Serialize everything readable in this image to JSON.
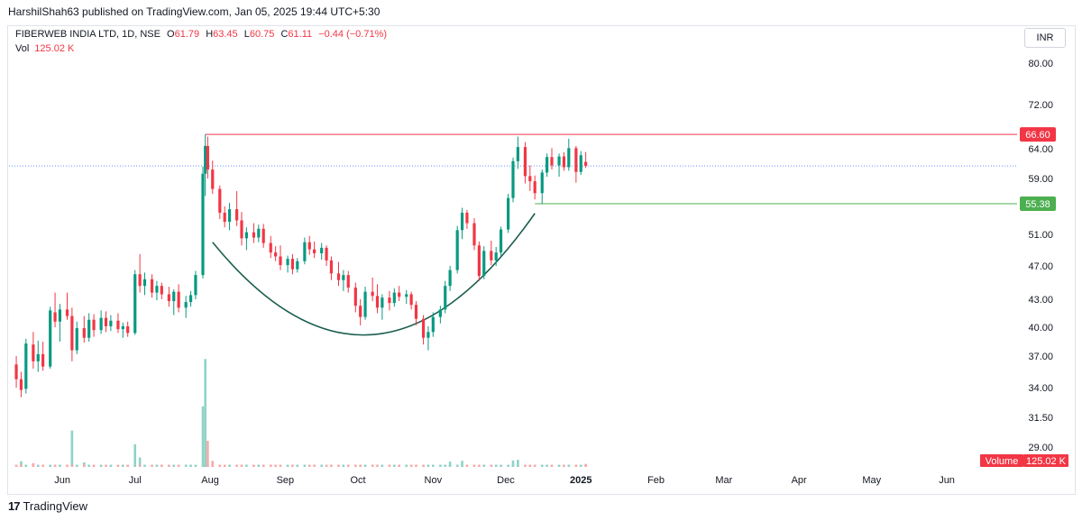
{
  "header": {
    "publish_line": "HarshilShah63 published on TradingView.com, Jan 05, 2025 19:44 UTC+5:30",
    "symbol": "FIBERWEB INDIA LTD, 1D, NSE",
    "o_label": "O",
    "o": "61.79",
    "h_label": "H",
    "h": "63.45",
    "l_label": "L",
    "l": "60.75",
    "c_label": "C",
    "c": "61.11",
    "change": "−0.44 (−0.71%)",
    "vol_label": "Vol",
    "vol_value": "125.02 K",
    "currency": "INR"
  },
  "brand": {
    "logo": "17",
    "name": "TradingView"
  },
  "colors": {
    "up": "#089981",
    "down": "#f23645",
    "vol_up": "#8fd3c7",
    "vol_down": "#f7a9a7",
    "resistance": "#f23645",
    "support": "#4caf50",
    "curve": "#1b5e4f",
    "last_price": "#2962ff"
  },
  "chart_data": {
    "type": "candlestick",
    "y_ticks": [
      "80.00",
      "72.00",
      "64.00",
      "59.00",
      "51.00",
      "47.00",
      "43.00",
      "40.00",
      "37.00",
      "34.00",
      "31.50",
      "29.00"
    ],
    "x_ticks": [
      "Jun",
      "Jul",
      "Aug",
      "Sep",
      "Oct",
      "Nov",
      "Dec",
      "2025",
      "Feb",
      "Mar",
      "Apr",
      "May",
      "Jun"
    ],
    "ylim": [
      27,
      90
    ],
    "levels": [
      {
        "value": 66.6,
        "label": "66.60",
        "color": "#f23645"
      },
      {
        "value": 55.38,
        "label": "55.38",
        "color": "#4caf50"
      }
    ],
    "last_price": 61.11,
    "volume_badge": {
      "label": "Volume",
      "value": "125.02 K"
    },
    "pattern": "cup (rounded bottom)",
    "candles": [
      {
        "date": "2024-05-13",
        "o": 36.2,
        "h": 37.0,
        "l": 34.0,
        "c": 34.8
      },
      {
        "date": "2024-05-15",
        "o": 34.8,
        "h": 35.5,
        "l": 33.2,
        "c": 33.8
      },
      {
        "date": "2024-05-17",
        "o": 33.9,
        "h": 38.8,
        "l": 33.5,
        "c": 38.3
      },
      {
        "date": "2024-05-20",
        "o": 38.2,
        "h": 39.5,
        "l": 35.8,
        "c": 36.5
      },
      {
        "date": "2024-05-22",
        "o": 36.5,
        "h": 38.6,
        "l": 35.5,
        "c": 37.2
      },
      {
        "date": "2024-05-24",
        "o": 37.2,
        "h": 38.5,
        "l": 35.6,
        "c": 36.0
      },
      {
        "date": "2024-05-27",
        "o": 36.0,
        "h": 42.2,
        "l": 35.8,
        "c": 41.8
      },
      {
        "date": "2024-05-29",
        "o": 41.6,
        "h": 43.8,
        "l": 40.0,
        "c": 40.6
      },
      {
        "date": "2024-05-31",
        "o": 40.6,
        "h": 42.5,
        "l": 38.5,
        "c": 41.9
      },
      {
        "date": "2024-06-03",
        "o": 41.9,
        "h": 43.8,
        "l": 40.8,
        "c": 41.2
      },
      {
        "date": "2024-06-05",
        "o": 41.2,
        "h": 42.1,
        "l": 36.5,
        "c": 37.6
      },
      {
        "date": "2024-06-07",
        "o": 37.6,
        "h": 40.6,
        "l": 37.2,
        "c": 39.9
      },
      {
        "date": "2024-06-10",
        "o": 39.9,
        "h": 41.2,
        "l": 38.4,
        "c": 38.9
      },
      {
        "date": "2024-06-12",
        "o": 38.9,
        "h": 41.5,
        "l": 38.5,
        "c": 40.8
      },
      {
        "date": "2024-06-14",
        "o": 40.8,
        "h": 41.4,
        "l": 39.0,
        "c": 39.7
      },
      {
        "date": "2024-06-17",
        "o": 39.7,
        "h": 41.8,
        "l": 39.3,
        "c": 41.0
      },
      {
        "date": "2024-06-19",
        "o": 41.0,
        "h": 41.7,
        "l": 39.5,
        "c": 40.1
      },
      {
        "date": "2024-06-21",
        "o": 40.1,
        "h": 41.3,
        "l": 39.6,
        "c": 40.7
      },
      {
        "date": "2024-06-24",
        "o": 40.7,
        "h": 41.5,
        "l": 39.4,
        "c": 39.8
      },
      {
        "date": "2024-06-26",
        "o": 39.8,
        "h": 40.5,
        "l": 38.9,
        "c": 40.1
      },
      {
        "date": "2024-06-28",
        "o": 40.1,
        "h": 40.6,
        "l": 39.0,
        "c": 39.4
      },
      {
        "date": "2024-07-01",
        "o": 39.4,
        "h": 46.5,
        "l": 39.2,
        "c": 46.0
      },
      {
        "date": "2024-07-03",
        "o": 46.0,
        "h": 48.5,
        "l": 43.8,
        "c": 44.6
      },
      {
        "date": "2024-07-05",
        "o": 44.6,
        "h": 46.2,
        "l": 43.5,
        "c": 45.4
      },
      {
        "date": "2024-07-08",
        "o": 45.4,
        "h": 46.0,
        "l": 43.2,
        "c": 43.8
      },
      {
        "date": "2024-07-10",
        "o": 43.8,
        "h": 45.2,
        "l": 42.9,
        "c": 44.6
      },
      {
        "date": "2024-07-12",
        "o": 44.6,
        "h": 45.0,
        "l": 43.0,
        "c": 43.6
      },
      {
        "date": "2024-07-15",
        "o": 43.6,
        "h": 44.5,
        "l": 42.2,
        "c": 42.8
      },
      {
        "date": "2024-07-17",
        "o": 42.8,
        "h": 44.2,
        "l": 41.3,
        "c": 43.9
      },
      {
        "date": "2024-07-19",
        "o": 43.9,
        "h": 44.8,
        "l": 41.6,
        "c": 42.1
      },
      {
        "date": "2024-07-22",
        "o": 42.1,
        "h": 43.4,
        "l": 41.0,
        "c": 42.7
      },
      {
        "date": "2024-07-24",
        "o": 42.7,
        "h": 44.0,
        "l": 42.2,
        "c": 43.5
      },
      {
        "date": "2024-07-26",
        "o": 43.5,
        "h": 46.4,
        "l": 43.0,
        "c": 45.9
      },
      {
        "date": "2024-07-29",
        "o": 45.9,
        "h": 61.0,
        "l": 45.5,
        "c": 59.8
      },
      {
        "date": "2024-07-30",
        "o": 59.8,
        "h": 66.6,
        "l": 56.5,
        "c": 64.5
      },
      {
        "date": "2024-07-31",
        "o": 64.5,
        "h": 66.2,
        "l": 59.0,
        "c": 60.5
      },
      {
        "date": "2024-08-02",
        "o": 60.5,
        "h": 62.0,
        "l": 56.8,
        "c": 57.5
      },
      {
        "date": "2024-08-05",
        "o": 57.5,
        "h": 58.0,
        "l": 53.2,
        "c": 54.1
      },
      {
        "date": "2024-08-07",
        "o": 54.1,
        "h": 55.0,
        "l": 52.0,
        "c": 52.8
      },
      {
        "date": "2024-08-09",
        "o": 52.8,
        "h": 55.5,
        "l": 51.6,
        "c": 54.6
      },
      {
        "date": "2024-08-12",
        "o": 54.6,
        "h": 57.2,
        "l": 52.2,
        "c": 53.0
      },
      {
        "date": "2024-08-14",
        "o": 53.0,
        "h": 54.2,
        "l": 49.6,
        "c": 50.5
      },
      {
        "date": "2024-08-16",
        "o": 50.5,
        "h": 52.0,
        "l": 49.0,
        "c": 51.3
      },
      {
        "date": "2024-08-19",
        "o": 51.3,
        "h": 52.6,
        "l": 49.9,
        "c": 50.6
      },
      {
        "date": "2024-08-21",
        "o": 50.6,
        "h": 52.4,
        "l": 50.0,
        "c": 51.8
      },
      {
        "date": "2024-08-23",
        "o": 51.8,
        "h": 52.5,
        "l": 49.3,
        "c": 49.9
      },
      {
        "date": "2024-08-26",
        "o": 49.9,
        "h": 50.8,
        "l": 48.0,
        "c": 48.7
      },
      {
        "date": "2024-08-28",
        "o": 48.7,
        "h": 49.5,
        "l": 47.6,
        "c": 48.2
      },
      {
        "date": "2024-08-30",
        "o": 48.2,
        "h": 49.6,
        "l": 46.5,
        "c": 47.1
      },
      {
        "date": "2024-09-02",
        "o": 47.1,
        "h": 48.3,
        "l": 46.2,
        "c": 47.9
      },
      {
        "date": "2024-09-04",
        "o": 47.9,
        "h": 48.5,
        "l": 46.0,
        "c": 46.6
      },
      {
        "date": "2024-09-06",
        "o": 46.6,
        "h": 48.0,
        "l": 46.2,
        "c": 47.6
      },
      {
        "date": "2024-09-09",
        "o": 47.6,
        "h": 50.6,
        "l": 47.2,
        "c": 50.0
      },
      {
        "date": "2024-09-11",
        "o": 50.0,
        "h": 50.8,
        "l": 48.4,
        "c": 49.1
      },
      {
        "date": "2024-09-13",
        "o": 49.1,
        "h": 50.1,
        "l": 48.0,
        "c": 48.6
      },
      {
        "date": "2024-09-16",
        "o": 48.6,
        "h": 49.9,
        "l": 47.8,
        "c": 49.3
      },
      {
        "date": "2024-09-18",
        "o": 49.3,
        "h": 49.6,
        "l": 47.0,
        "c": 47.7
      },
      {
        "date": "2024-09-20",
        "o": 47.7,
        "h": 48.2,
        "l": 45.3,
        "c": 46.1
      },
      {
        "date": "2024-09-23",
        "o": 46.1,
        "h": 47.5,
        "l": 44.6,
        "c": 45.3
      },
      {
        "date": "2024-09-25",
        "o": 45.3,
        "h": 46.5,
        "l": 44.0,
        "c": 45.9
      },
      {
        "date": "2024-09-27",
        "o": 45.9,
        "h": 46.4,
        "l": 43.8,
        "c": 44.4
      },
      {
        "date": "2024-09-30",
        "o": 44.4,
        "h": 45.0,
        "l": 41.6,
        "c": 42.3
      },
      {
        "date": "2024-10-02",
        "o": 42.3,
        "h": 43.0,
        "l": 40.2,
        "c": 41.1
      },
      {
        "date": "2024-10-04",
        "o": 41.1,
        "h": 44.5,
        "l": 40.8,
        "c": 43.9
      },
      {
        "date": "2024-10-07",
        "o": 43.9,
        "h": 45.6,
        "l": 42.8,
        "c": 43.4
      },
      {
        "date": "2024-10-09",
        "o": 43.4,
        "h": 44.8,
        "l": 41.5,
        "c": 42.1
      },
      {
        "date": "2024-10-11",
        "o": 42.1,
        "h": 43.6,
        "l": 40.8,
        "c": 43.2
      },
      {
        "date": "2024-10-14",
        "o": 43.2,
        "h": 44.0,
        "l": 41.8,
        "c": 42.6
      },
      {
        "date": "2024-10-16",
        "o": 42.6,
        "h": 44.3,
        "l": 42.2,
        "c": 43.8
      },
      {
        "date": "2024-10-18",
        "o": 43.8,
        "h": 44.6,
        "l": 42.8,
        "c": 43.3
      },
      {
        "date": "2024-10-21",
        "o": 43.3,
        "h": 44.1,
        "l": 42.5,
        "c": 43.6
      },
      {
        "date": "2024-10-23",
        "o": 43.6,
        "h": 43.9,
        "l": 41.9,
        "c": 42.4
      },
      {
        "date": "2024-10-25",
        "o": 42.4,
        "h": 42.8,
        "l": 40.2,
        "c": 40.9
      },
      {
        "date": "2024-10-28",
        "o": 40.9,
        "h": 41.3,
        "l": 38.2,
        "c": 38.9
      },
      {
        "date": "2024-10-30",
        "o": 38.9,
        "h": 40.1,
        "l": 37.6,
        "c": 39.5
      },
      {
        "date": "2024-11-01",
        "o": 39.5,
        "h": 41.6,
        "l": 39.0,
        "c": 41.1
      },
      {
        "date": "2024-11-04",
        "o": 41.1,
        "h": 42.3,
        "l": 40.4,
        "c": 41.9
      },
      {
        "date": "2024-11-06",
        "o": 41.9,
        "h": 45.2,
        "l": 41.5,
        "c": 44.6
      },
      {
        "date": "2024-11-08",
        "o": 44.6,
        "h": 47.0,
        "l": 44.0,
        "c": 46.5
      },
      {
        "date": "2024-11-11",
        "o": 46.5,
        "h": 52.2,
        "l": 46.1,
        "c": 51.6
      },
      {
        "date": "2024-11-13",
        "o": 51.6,
        "h": 54.8,
        "l": 50.4,
        "c": 54.1
      },
      {
        "date": "2024-11-15",
        "o": 54.1,
        "h": 54.5,
        "l": 51.8,
        "c": 52.6
      },
      {
        "date": "2024-11-18",
        "o": 52.6,
        "h": 53.3,
        "l": 49.0,
        "c": 49.6
      },
      {
        "date": "2024-11-20",
        "o": 49.6,
        "h": 50.1,
        "l": 45.2,
        "c": 45.8
      },
      {
        "date": "2024-11-22",
        "o": 45.8,
        "h": 49.5,
        "l": 45.4,
        "c": 48.9
      },
      {
        "date": "2024-11-25",
        "o": 48.9,
        "h": 50.2,
        "l": 47.1,
        "c": 47.7
      },
      {
        "date": "2024-11-27",
        "o": 47.7,
        "h": 49.4,
        "l": 47.0,
        "c": 48.7
      },
      {
        "date": "2024-11-29",
        "o": 48.7,
        "h": 52.1,
        "l": 48.3,
        "c": 51.7
      },
      {
        "date": "2024-12-02",
        "o": 51.7,
        "h": 56.8,
        "l": 51.2,
        "c": 56.2
      },
      {
        "date": "2024-12-04",
        "o": 56.2,
        "h": 62.5,
        "l": 55.6,
        "c": 61.9
      },
      {
        "date": "2024-12-06",
        "o": 61.9,
        "h": 66.2,
        "l": 60.6,
        "c": 64.3
      },
      {
        "date": "2024-12-09",
        "o": 64.3,
        "h": 65.2,
        "l": 58.3,
        "c": 59.4
      },
      {
        "date": "2024-12-11",
        "o": 59.4,
        "h": 61.2,
        "l": 57.2,
        "c": 58.6
      },
      {
        "date": "2024-12-13",
        "o": 58.6,
        "h": 59.5,
        "l": 56.0,
        "c": 56.9
      },
      {
        "date": "2024-12-16",
        "o": 56.9,
        "h": 60.5,
        "l": 55.4,
        "c": 60.0
      },
      {
        "date": "2024-12-18",
        "o": 60.0,
        "h": 63.2,
        "l": 59.3,
        "c": 62.6
      },
      {
        "date": "2024-12-20",
        "o": 62.6,
        "h": 64.1,
        "l": 60.5,
        "c": 61.2
      },
      {
        "date": "2024-12-23",
        "o": 61.2,
        "h": 63.2,
        "l": 59.3,
        "c": 62.7
      },
      {
        "date": "2024-12-25",
        "o": 62.7,
        "h": 63.4,
        "l": 60.3,
        "c": 60.9
      },
      {
        "date": "2024-12-27",
        "o": 60.9,
        "h": 65.8,
        "l": 60.3,
        "c": 64.1
      },
      {
        "date": "2024-12-30",
        "o": 64.1,
        "h": 64.5,
        "l": 58.4,
        "c": 60.1
      },
      {
        "date": "2025-01-01",
        "o": 60.1,
        "h": 63.6,
        "l": 59.6,
        "c": 62.9
      },
      {
        "date": "2025-01-03",
        "o": 61.79,
        "h": 63.45,
        "l": 60.75,
        "c": 61.11
      }
    ],
    "volume": [
      {
        "date": "2024-05-15",
        "v": 1.5,
        "up": true
      },
      {
        "date": "2024-05-20",
        "v": 1.0,
        "up": false
      },
      {
        "date": "2024-06-05",
        "v": 9.6,
        "up": true
      },
      {
        "date": "2024-06-10",
        "v": 1.2,
        "up": true
      },
      {
        "date": "2024-07-01",
        "v": 6.0,
        "up": true
      },
      {
        "date": "2024-07-03",
        "v": 2.5,
        "up": true
      },
      {
        "date": "2024-07-29",
        "v": 16.0,
        "up": true
      },
      {
        "date": "2024-07-30",
        "v": 28.5,
        "up": true
      },
      {
        "date": "2024-07-31",
        "v": 6.9,
        "up": false
      },
      {
        "date": "2024-08-02",
        "v": 1.6,
        "up": false
      },
      {
        "date": "2024-11-08",
        "v": 1.4,
        "up": true
      },
      {
        "date": "2024-11-13",
        "v": 1.6,
        "up": true
      },
      {
        "date": "2024-12-04",
        "v": 1.7,
        "up": true
      },
      {
        "date": "2024-12-06",
        "v": 1.9,
        "up": true
      },
      {
        "date": "2025-01-03",
        "v": 0.8,
        "up": false
      }
    ]
  }
}
